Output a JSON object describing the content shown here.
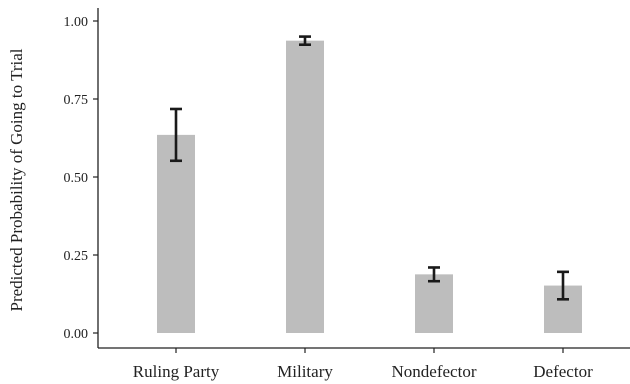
{
  "chart_data": {
    "type": "bar",
    "title": "",
    "xlabel": "",
    "ylabel": "Predicted Probability of Going to Trial",
    "categories": [
      "Ruling Party",
      "Military",
      "Nondefector",
      "Defector"
    ],
    "values": [
      0.635,
      0.937,
      0.188,
      0.152
    ],
    "error_low": [
      0.552,
      0.924,
      0.166,
      0.108
    ],
    "error_high": [
      0.718,
      0.95,
      0.21,
      0.196
    ],
    "ylim": [
      0,
      1.0
    ],
    "yticks": [
      0.0,
      0.25,
      0.5,
      0.75,
      1.0
    ],
    "ytick_labels": [
      "0.00",
      "0.25",
      "0.50",
      "0.75",
      "1.00"
    ],
    "grid": false,
    "bar_color": "#bdbdbd",
    "error_color": "#1a1a1a",
    "axis_color": "#222222"
  }
}
